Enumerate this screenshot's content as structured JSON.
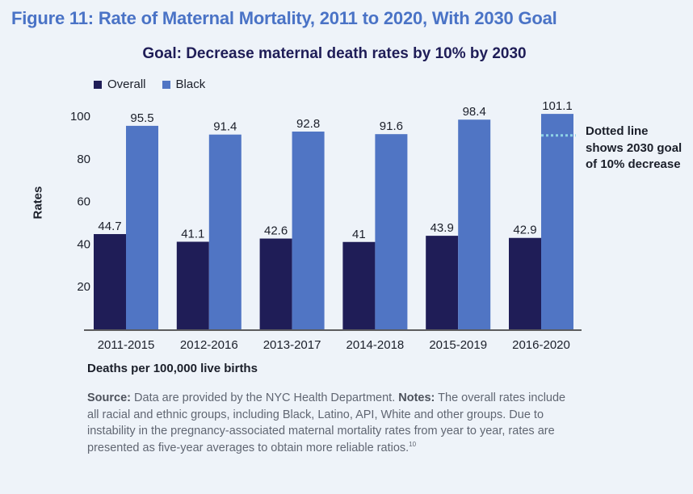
{
  "figure_title": "Figure 11: Rate of Maternal Mortality, 2011 to 2020, With 2030 Goal",
  "colors": {
    "overall": "#1f1d57",
    "black": "#5075c4",
    "goal_line": "#8fd3e6",
    "title": "#4a73c6"
  },
  "chart_data": {
    "type": "bar",
    "title": "Goal: Decrease maternal death rates by 10% by 2030",
    "xlabel": "Deaths per 100,000 live births",
    "ylabel": "Rates",
    "categories": [
      "2011-2015",
      "2012-2016",
      "2013-2017",
      "2014-2018",
      "2015-2019",
      "2016-2020"
    ],
    "series": [
      {
        "name": "Overall",
        "values": [
          44.7,
          41.1,
          42.6,
          41,
          43.9,
          42.9
        ],
        "labels": [
          "44.7",
          "41.1",
          "42.6",
          "41",
          "43.9",
          "42.9"
        ]
      },
      {
        "name": "Black",
        "values": [
          95.5,
          91.4,
          92.8,
          91.6,
          98.4,
          101.1
        ],
        "labels": [
          "95.5",
          "91.4",
          "92.8",
          "91.6",
          "98.4",
          "101.1"
        ]
      }
    ],
    "yticks": [
      20,
      40,
      60,
      80,
      100
    ],
    "ylim": [
      0,
      100
    ],
    "goal_line": {
      "category": "2016-2020",
      "series": "Black",
      "value": 91
    },
    "legend_position": "top-left",
    "grid": false,
    "annotation": "Dotted line shows 2030 goal of 10% decrease"
  },
  "source": {
    "source_label": "Source:",
    "source_text": " Data are provided by the NYC Health Department. ",
    "notes_label": "Notes:",
    "notes_text": " The overall rates include all racial and ethnic groups, including Black, Latino, API, White and other groups. Due to instability in the pregnancy-associated maternal mortality rates from year to year, rates are presented as five-year averages to obtain more reliable ratios.",
    "footnote": "10"
  }
}
